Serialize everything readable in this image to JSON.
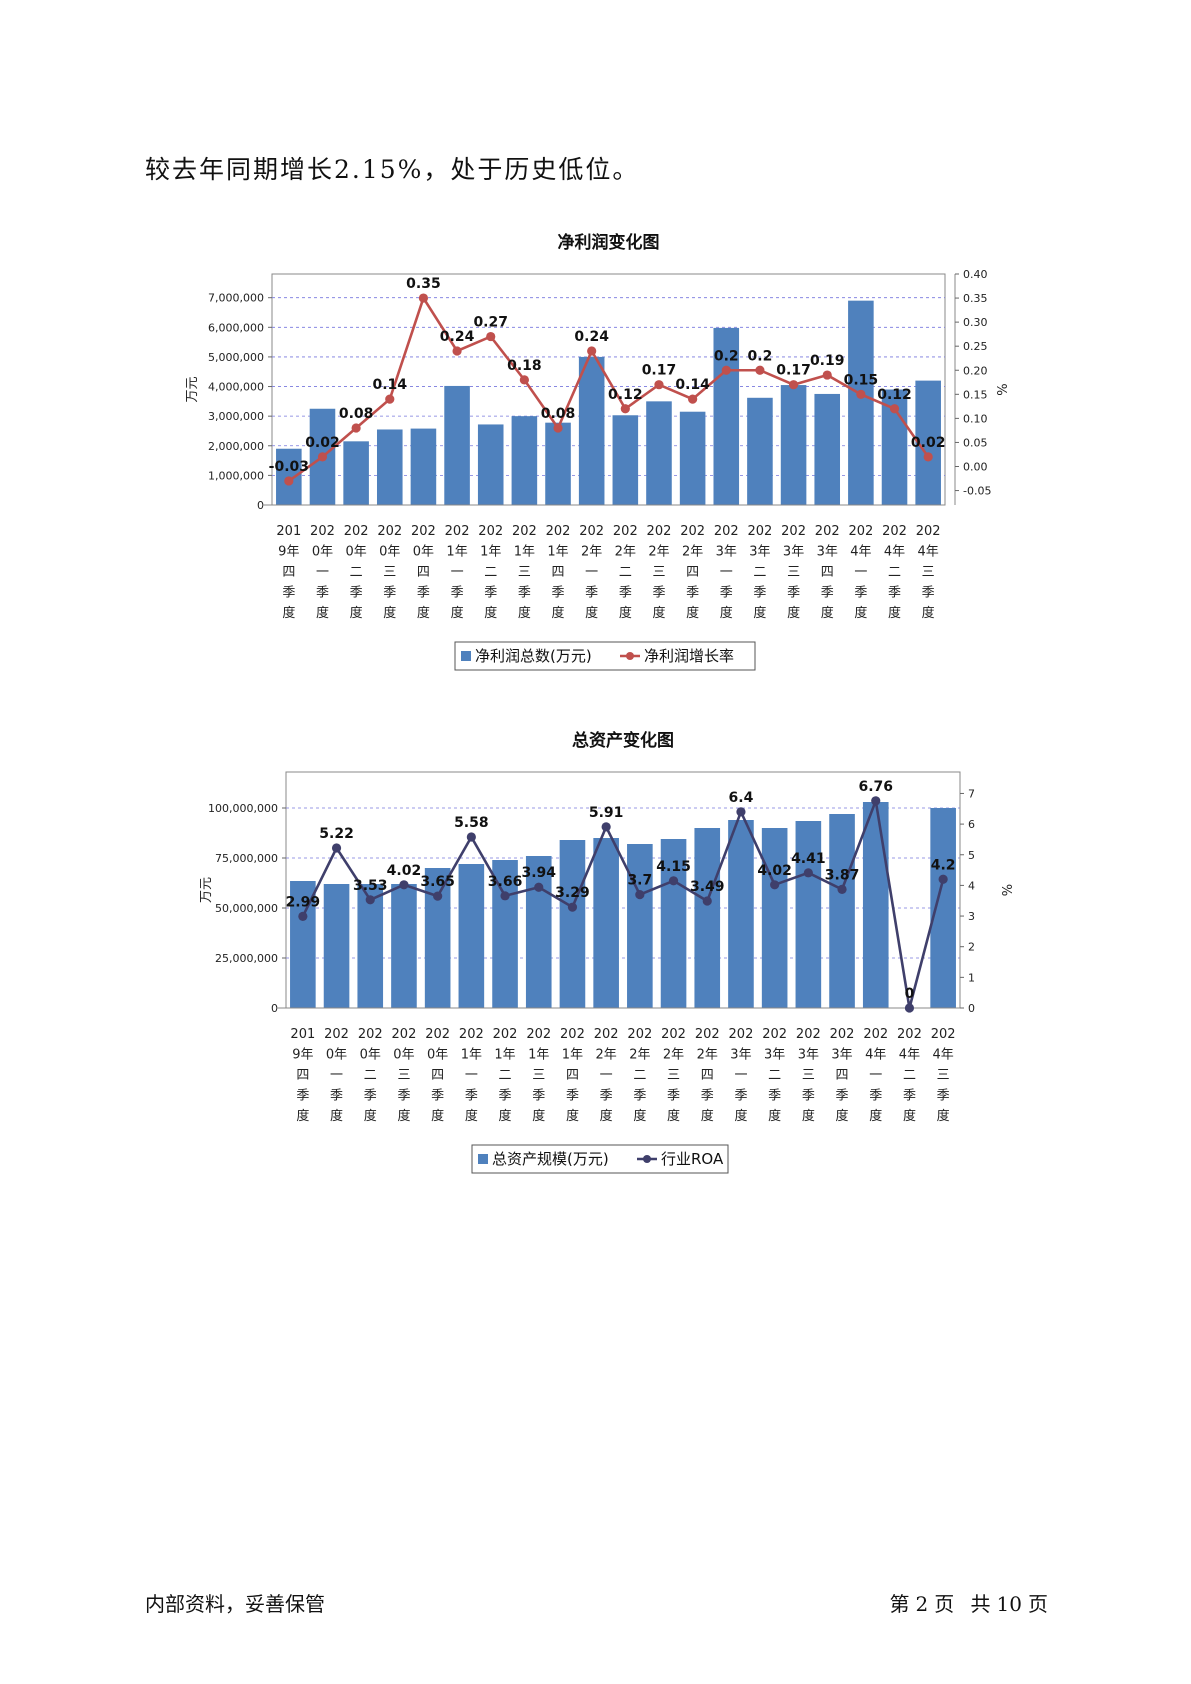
{
  "intro_text": "较去年同期增长2.15%，处于历史低位。",
  "footer": {
    "left": "内部资料，妥善保管",
    "page_prefix": "第",
    "page_number": "2",
    "page_unit": "页",
    "total_prefix": "共",
    "total_number": "10",
    "total_unit": "页"
  },
  "chart_data": [
    {
      "type": "bar+line",
      "title": "净利润变化图",
      "ylabel_left": "万元",
      "ylabel_right": "%",
      "ylim_left": [
        0,
        7800000
      ],
      "ylim_right": [
        -0.08,
        0.4
      ],
      "yticks_left": [
        "0",
        "1,000,000",
        "2,000,000",
        "3,000,000",
        "4,000,000",
        "5,000,000",
        "6,000,000",
        "7,000,000"
      ],
      "yticks_right": [
        "-0.05",
        "0.00",
        "0.05",
        "0.10",
        "0.15",
        "0.20",
        "0.25",
        "0.30",
        "0.35",
        "0.40"
      ],
      "categories": [
        "2019年四季度",
        "2020年一季度",
        "2020年二季度",
        "2020年三季度",
        "2020年四季度",
        "2021年一季度",
        "2021年二季度",
        "2021年三季度",
        "2021年四季度",
        "2022年一季度",
        "2022年二季度",
        "2022年三季度",
        "2022年四季度",
        "2023年一季度",
        "2023年二季度",
        "2023年三季度",
        "2023年四季度",
        "2024年一季度",
        "2024年二季度",
        "2024年三季度"
      ],
      "category_lines": [
        [
          "201",
          "9年",
          "四",
          "季",
          "度"
        ],
        [
          "202",
          "0年",
          "一",
          "季",
          "度"
        ],
        [
          "202",
          "0年",
          "二",
          "季",
          "度"
        ],
        [
          "202",
          "0年",
          "三",
          "季",
          "度"
        ],
        [
          "202",
          "0年",
          "四",
          "季",
          "度"
        ],
        [
          "202",
          "1年",
          "一",
          "季",
          "度"
        ],
        [
          "202",
          "1年",
          "二",
          "季",
          "度"
        ],
        [
          "202",
          "1年",
          "三",
          "季",
          "度"
        ],
        [
          "202",
          "1年",
          "四",
          "季",
          "度"
        ],
        [
          "202",
          "2年",
          "一",
          "季",
          "度"
        ],
        [
          "202",
          "2年",
          "二",
          "季",
          "度"
        ],
        [
          "202",
          "2年",
          "三",
          "季",
          "度"
        ],
        [
          "202",
          "2年",
          "四",
          "季",
          "度"
        ],
        [
          "202",
          "3年",
          "一",
          "季",
          "度"
        ],
        [
          "202",
          "3年",
          "二",
          "季",
          "度"
        ],
        [
          "202",
          "3年",
          "三",
          "季",
          "度"
        ],
        [
          "202",
          "3年",
          "四",
          "季",
          "度"
        ],
        [
          "202",
          "4年",
          "一",
          "季",
          "度"
        ],
        [
          "202",
          "4年",
          "二",
          "季",
          "度"
        ],
        [
          "202",
          "4年",
          "三",
          "季",
          "度"
        ]
      ],
      "series": [
        {
          "name": "净利润总数(万元)",
          "kind": "bar",
          "color": "#4f81bd",
          "values": [
            1900000,
            3250000,
            2150000,
            2550000,
            2580000,
            4020000,
            2720000,
            3000000,
            2780000,
            5000000,
            3030000,
            3500000,
            3150000,
            5980000,
            3620000,
            4050000,
            3750000,
            6900000,
            3900000,
            4200000
          ]
        },
        {
          "name": "净利润增长率",
          "kind": "line",
          "color": "#c0504d",
          "values": [
            -0.03,
            0.02,
            0.08,
            0.14,
            0.35,
            0.24,
            0.27,
            0.18,
            0.08,
            0.24,
            0.12,
            0.17,
            0.14,
            0.2,
            0.2,
            0.17,
            0.19,
            0.15,
            0.12,
            0.02
          ]
        }
      ],
      "legend_position": "bottom-center",
      "grid": true
    },
    {
      "type": "bar+line",
      "title": "总资产变化图",
      "ylabel_left": "万元",
      "ylabel_right": "%",
      "ylim_left": [
        0,
        118000000
      ],
      "ylim_right": [
        0,
        7.7
      ],
      "yticks_left": [
        "0",
        "25,000,000",
        "50,000,000",
        "75,000,000",
        "100,000,000"
      ],
      "yticks_right": [
        "0",
        "1",
        "2",
        "3",
        "4",
        "5",
        "6",
        "7"
      ],
      "categories": [
        "2019年四季度",
        "2020年一季度",
        "2020年二季度",
        "2020年三季度",
        "2020年四季度",
        "2021年一季度",
        "2021年二季度",
        "2021年三季度",
        "2021年四季度",
        "2022年一季度",
        "2022年二季度",
        "2022年三季度",
        "2022年四季度",
        "2023年一季度",
        "2023年二季度",
        "2023年三季度",
        "2023年四季度",
        "2024年一季度",
        "2024年二季度",
        "2024年三季度"
      ],
      "category_lines": [
        [
          "201",
          "9年",
          "四",
          "季",
          "度"
        ],
        [
          "202",
          "0年",
          "一",
          "季",
          "度"
        ],
        [
          "202",
          "0年",
          "二",
          "季",
          "度"
        ],
        [
          "202",
          "0年",
          "三",
          "季",
          "度"
        ],
        [
          "202",
          "0年",
          "四",
          "季",
          "度"
        ],
        [
          "202",
          "1年",
          "一",
          "季",
          "度"
        ],
        [
          "202",
          "1年",
          "二",
          "季",
          "度"
        ],
        [
          "202",
          "1年",
          "三",
          "季",
          "度"
        ],
        [
          "202",
          "1年",
          "四",
          "季",
          "度"
        ],
        [
          "202",
          "2年",
          "一",
          "季",
          "度"
        ],
        [
          "202",
          "2年",
          "二",
          "季",
          "度"
        ],
        [
          "202",
          "2年",
          "三",
          "季",
          "度"
        ],
        [
          "202",
          "2年",
          "四",
          "季",
          "度"
        ],
        [
          "202",
          "3年",
          "一",
          "季",
          "度"
        ],
        [
          "202",
          "3年",
          "二",
          "季",
          "度"
        ],
        [
          "202",
          "3年",
          "三",
          "季",
          "度"
        ],
        [
          "202",
          "3年",
          "四",
          "季",
          "度"
        ],
        [
          "202",
          "4年",
          "一",
          "季",
          "度"
        ],
        [
          "202",
          "4年",
          "二",
          "季",
          "度"
        ],
        [
          "202",
          "4年",
          "三",
          "季",
          "度"
        ]
      ],
      "series": [
        {
          "name": "总资产规模(万元)",
          "kind": "bar",
          "color": "#4f81bd",
          "values": [
            63500000,
            62000000,
            62000000,
            62000000,
            70000000,
            72000000,
            74000000,
            76000000,
            84000000,
            85000000,
            82000000,
            84500000,
            90000000,
            94000000,
            90000000,
            93500000,
            97000000,
            103000000,
            0,
            100000000
          ]
        },
        {
          "name": "行业ROA",
          "kind": "line",
          "color": "#3f3f6b",
          "values": [
            2.99,
            5.22,
            3.53,
            4.02,
            3.65,
            5.58,
            3.66,
            3.94,
            3.29,
            5.91,
            3.7,
            4.15,
            3.49,
            6.4,
            4.02,
            4.41,
            3.87,
            6.76,
            0,
            4.2
          ]
        }
      ],
      "legend_position": "bottom-center",
      "grid": true
    }
  ]
}
